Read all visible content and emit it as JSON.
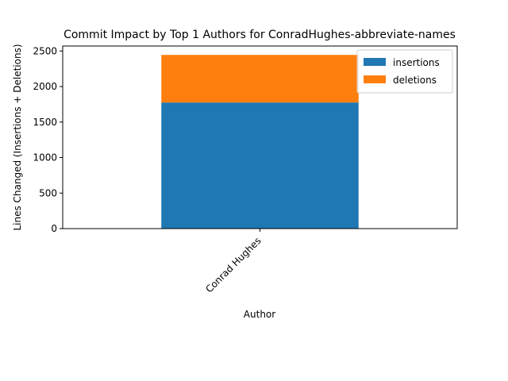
{
  "chart_data": {
    "type": "bar",
    "stacked": true,
    "title": "Commit Impact by Top 1 Authors for ConradHughes-abbreviate-names",
    "xlabel": "Author",
    "ylabel": "Lines Changed (Insertions + Deletions)",
    "categories": [
      "Conrad Hughes"
    ],
    "series": [
      {
        "name": "insertions",
        "values": [
          1775
        ],
        "color": "#1f77b4"
      },
      {
        "name": "deletions",
        "values": [
          670
        ],
        "color": "#ff7f0e"
      }
    ],
    "ylim": [
      0,
      2570
    ],
    "yticks": [
      0,
      500,
      1000,
      1500,
      2000,
      2500
    ],
    "grid": false,
    "legend_position": "top-right"
  }
}
